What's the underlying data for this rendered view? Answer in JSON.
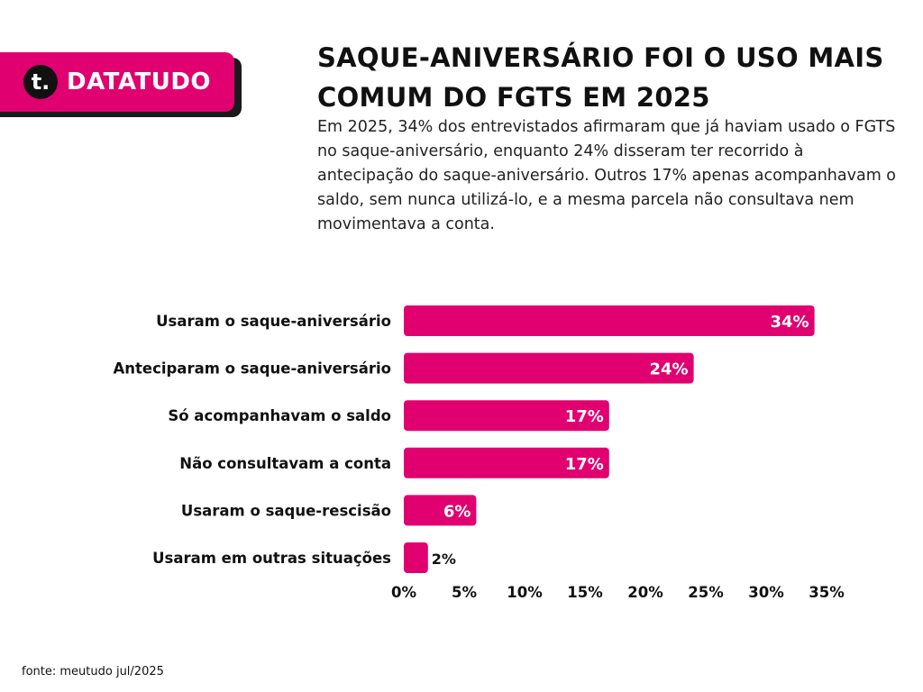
{
  "brand": {
    "name": "DATATUDO",
    "mark": "t."
  },
  "title": "SAQUE-ANIVERSÁRIO FOI O USO MAIS COMUM DO FGTS EM 2025",
  "subtitle": "Em 2025, 34% dos entrevistados afirmaram que já haviam usado o FGTS no saque-aniversário, enquanto 24% disseram ter recorrido à antecipação do saque-aniversário. Outros 17% apenas acompanhavam o saldo, sem nunca utilizá-lo, e a mesma parcela não consultava nem movimentava a conta.",
  "source": "fonte: meutudo jul/2025",
  "colors": {
    "bar": "#e0006f",
    "text": "#111111",
    "label_inside": "#ffffff"
  },
  "chart_data": {
    "type": "bar",
    "orientation": "horizontal",
    "categories": [
      "Usaram o saque-aniversário",
      "Anteciparam o saque-aniversário",
      "Só acompanhavam o saldo",
      "Não consultavam a conta",
      "Usaram o saque-rescisão",
      "Usaram em outras situações"
    ],
    "values": [
      34,
      24,
      17,
      17,
      6,
      2
    ],
    "data_labels": [
      "34%",
      "24%",
      "17%",
      "17%",
      "6%",
      "2%"
    ],
    "xticks": [
      0,
      5,
      10,
      15,
      20,
      25,
      30,
      35
    ],
    "xtick_labels": [
      "0%",
      "5%",
      "10%",
      "15%",
      "20%",
      "25%",
      "30%",
      "35%"
    ],
    "xlim": [
      0,
      35
    ],
    "grid": false,
    "legend": false
  }
}
